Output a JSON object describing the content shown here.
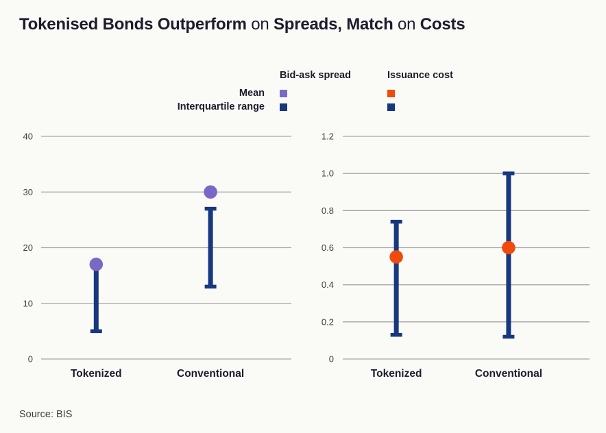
{
  "title": {
    "segments": [
      {
        "text": "Tokenised Bonds Outperform ",
        "bold": true
      },
      {
        "text": "on ",
        "bold": false
      },
      {
        "text": "Spreads, Match ",
        "bold": true
      },
      {
        "text": "on ",
        "bold": false
      },
      {
        "text": "Costs",
        "bold": true
      }
    ]
  },
  "legend": {
    "columns": [
      {
        "header": "Bid-ask spread",
        "mean_color": "#7a68c6",
        "iqr_color": "#17387e"
      },
      {
        "header": "Issuance cost",
        "mean_color": "#f04a0c",
        "iqr_color": "#17387e"
      }
    ],
    "rows": [
      {
        "label": "Mean"
      },
      {
        "label": "Interquartile range"
      }
    ]
  },
  "colors": {
    "background": "#fafaf7",
    "gridline": "#a6a6a6",
    "tick_text": "#3f3f3f",
    "category_text": "#1c1c2c",
    "mean_purple": "#7a68c6",
    "mean_orange": "#f04a0c",
    "iqr_navy": "#17387e"
  },
  "chart_data": [
    {
      "type": "scatter",
      "variant": "mean-with-interquartile-range",
      "title": "Bid-ask spread",
      "categories": [
        "Tokenized",
        "Conventional"
      ],
      "series": [
        {
          "name": "Mean",
          "values": [
            17,
            30
          ]
        },
        {
          "name": "Interquartile range low",
          "values": [
            5,
            13
          ]
        },
        {
          "name": "Interquartile range high",
          "values": [
            17,
            27
          ]
        }
      ],
      "ylim": [
        0,
        40
      ],
      "yticks": [
        0,
        10,
        20,
        30,
        40
      ],
      "ytick_labels": [
        "0",
        "10",
        "20",
        "30",
        "40"
      ],
      "grid": true,
      "legend_position": "top",
      "mean_color": "#7a68c6",
      "iqr_color": "#17387e"
    },
    {
      "type": "scatter",
      "variant": "mean-with-interquartile-range",
      "title": "Issuance cost",
      "categories": [
        "Tokenized",
        "Conventional"
      ],
      "series": [
        {
          "name": "Mean",
          "values": [
            0.55,
            0.6
          ]
        },
        {
          "name": "Interquartile range low",
          "values": [
            0.13,
            0.12
          ]
        },
        {
          "name": "Interquartile range high",
          "values": [
            0.74,
            1.0
          ]
        }
      ],
      "ylim": [
        0,
        1.2
      ],
      "yticks": [
        0,
        0.2,
        0.4,
        0.6,
        0.8,
        1.0,
        1.2
      ],
      "ytick_labels": [
        "0",
        "0.2",
        "0.4",
        "0.6",
        "0.8",
        "1.0",
        "1.2"
      ],
      "grid": true,
      "legend_position": "top",
      "mean_color": "#f04a0c",
      "iqr_color": "#17387e"
    }
  ],
  "source": "Source: BIS"
}
